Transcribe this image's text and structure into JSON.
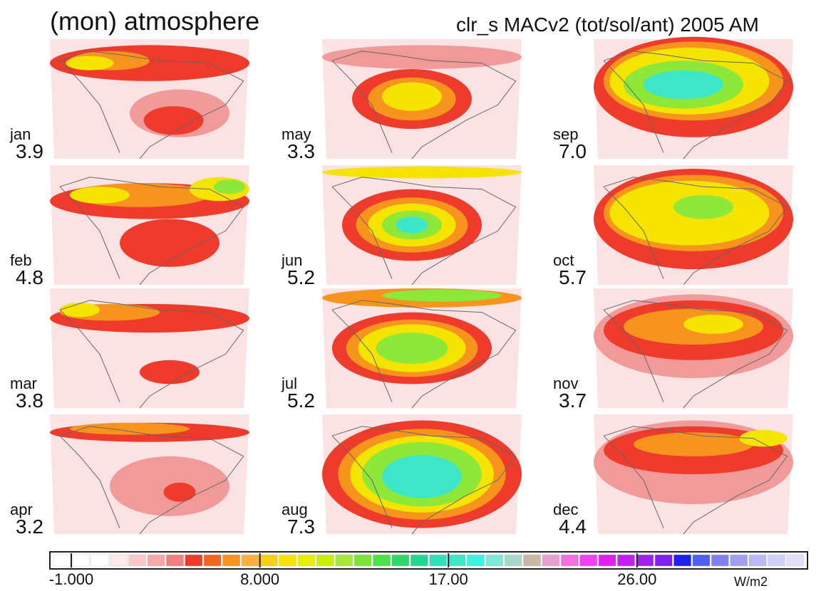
{
  "header": {
    "title": "(mon) atmosphere",
    "subtitle": "clr_s MACv2 (tot/sol/ant) 2005 AM"
  },
  "panels": [
    {
      "month": "jan",
      "value": "3.9"
    },
    {
      "month": "feb",
      "value": "4.8"
    },
    {
      "month": "mar",
      "value": "3.8"
    },
    {
      "month": "apr",
      "value": "3.2"
    },
    {
      "month": "may",
      "value": "3.3"
    },
    {
      "month": "jun",
      "value": "5.2"
    },
    {
      "month": "jul",
      "value": "5.2"
    },
    {
      "month": "aug",
      "value": "7.3"
    },
    {
      "month": "sep",
      "value": "7.0"
    },
    {
      "month": "oct",
      "value": "5.7"
    },
    {
      "month": "nov",
      "value": "3.7"
    },
    {
      "month": "dec",
      "value": "4.4"
    }
  ],
  "colorbar": {
    "ticks": [
      {
        "value": -1,
        "label": "-1.000"
      },
      {
        "value": 8,
        "label": "8.000"
      },
      {
        "value": 17,
        "label": "17.00"
      },
      {
        "value": 26,
        "label": "26.00"
      }
    ],
    "unit": "W/m2"
  }
}
